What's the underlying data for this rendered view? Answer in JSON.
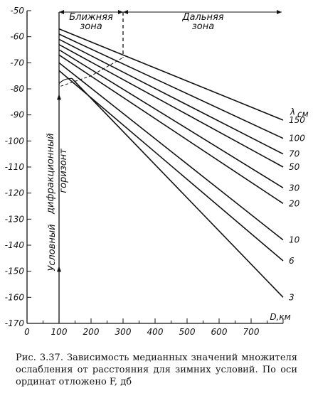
{
  "chart_data": {
    "type": "line",
    "xlabel": "D,км",
    "ylim": [
      -170,
      -50
    ],
    "xlim": [
      0,
      800
    ],
    "x_ticks": [
      "0",
      "100",
      "200",
      "300",
      "400",
      "500",
      "600",
      "700"
    ],
    "y_ticks": [
      "-50",
      "-60",
      "-70",
      "-80",
      "-90",
      "-100",
      "-110",
      "-120",
      "-130",
      "-140",
      "-150",
      "-160",
      "-170"
    ],
    "legend_title": "λсм",
    "zones": {
      "near": "Ближняя\nзона",
      "far": "Дальняя\nзона"
    },
    "zone_boundary_x": 300,
    "horizon_x": 100,
    "vertical_label": "Условный дифракционный горизонт",
    "series": [
      {
        "name": "150",
        "x": [
          100,
          800
        ],
        "y": [
          -57,
          -92
        ]
      },
      {
        "name": "100",
        "x": [
          100,
          800
        ],
        "y": [
          -59,
          -99
        ]
      },
      {
        "name": "70",
        "x": [
          100,
          800
        ],
        "y": [
          -61,
          -105
        ]
      },
      {
        "name": "50",
        "x": [
          100,
          800
        ],
        "y": [
          -63,
          -110
        ]
      },
      {
        "name": "30",
        "x": [
          100,
          800
        ],
        "y": [
          -65,
          -118
        ]
      },
      {
        "name": "20",
        "x": [
          100,
          800
        ],
        "y": [
          -67,
          -124
        ]
      },
      {
        "name": "10",
        "x": [
          100,
          800
        ],
        "y": [
          -70,
          -138
        ]
      },
      {
        "name": "6",
        "x": [
          100,
          800
        ],
        "y": [
          -73,
          -146
        ]
      },
      {
        "name": "3",
        "x": [
          140,
          800
        ],
        "y": [
          -76,
          -160
        ]
      }
    ]
  },
  "caption": "Рис. 3.37. Зависимость медианных значений множителя ослабления от расстояния для зимних условий. По оси ординат отложено F, дб"
}
